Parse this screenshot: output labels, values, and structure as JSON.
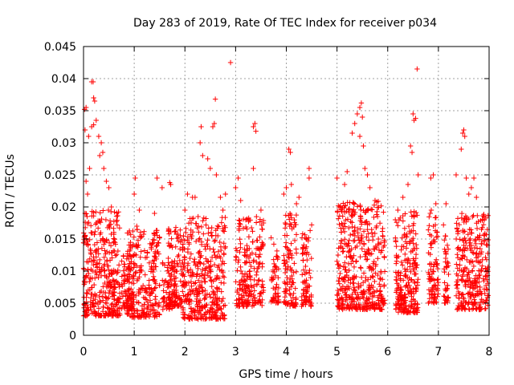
{
  "chart_data": {
    "type": "scatter",
    "title": "Day 283 of 2019, Rate Of TEC Index for receiver p034",
    "xlabel": "GPS time / hours",
    "ylabel": "ROTI / TECUs",
    "xlim": [
      0,
      8
    ],
    "ylim": [
      0,
      0.045
    ],
    "xticks": [
      0,
      1,
      2,
      3,
      4,
      5,
      6,
      7,
      8
    ],
    "xtick_labels": [
      "0",
      "1",
      "2",
      "3",
      "4",
      "5",
      "6",
      "7",
      "8"
    ],
    "yticks": [
      0,
      0.005,
      0.01,
      0.015,
      0.02,
      0.025,
      0.03,
      0.035,
      0.04,
      0.045
    ],
    "ytick_labels": [
      "0",
      "0.005",
      "0.01",
      "0.015",
      "0.02",
      "0.025",
      "0.03",
      "0.035",
      "0.04",
      "0.045"
    ],
    "grid": true,
    "marker": "+",
    "color": "#ff0000",
    "series": [
      {
        "name": "ROTI",
        "points": [
          [
            0.02,
            0.0352
          ],
          [
            0.05,
            0.0355
          ],
          [
            0.03,
            0.032
          ],
          [
            0.1,
            0.031
          ],
          [
            0.16,
            0.0395
          ],
          [
            0.19,
            0.0395
          ],
          [
            0.2,
            0.037
          ],
          [
            0.22,
            0.0365
          ],
          [
            0.16,
            0.0325
          ],
          [
            0.2,
            0.0328
          ],
          [
            0.25,
            0.0335
          ],
          [
            0.3,
            0.031
          ],
          [
            0.35,
            0.03
          ],
          [
            0.32,
            0.028
          ],
          [
            0.38,
            0.0285
          ],
          [
            0.4,
            0.026
          ],
          [
            0.45,
            0.024
          ],
          [
            0.5,
            0.023
          ],
          [
            0.55,
            0.02
          ],
          [
            0.12,
            0.026
          ],
          [
            0.08,
            0.022
          ],
          [
            0.05,
            0.024
          ],
          [
            0.03,
            0.019
          ],
          [
            0.07,
            0.0185
          ],
          [
            0.25,
            0.0122
          ],
          [
            0.4,
            0.0108
          ],
          [
            0.55,
            0.0096
          ],
          [
            0.65,
            0.0084
          ],
          [
            0.9,
            0.0062
          ],
          [
            0.95,
            0.0091
          ],
          [
            0.85,
            0.0052
          ],
          [
            0.2,
            0.0186
          ],
          [
            0.5,
            0.017
          ],
          [
            0.45,
            0.0058
          ],
          [
            0.15,
            0.0064
          ],
          [
            0.3,
            0.0042
          ],
          [
            1.0,
            0.022
          ],
          [
            1.02,
            0.0245
          ],
          [
            1.1,
            0.0195
          ],
          [
            1.05,
            0.017
          ],
          [
            1.45,
            0.0245
          ],
          [
            1.55,
            0.023
          ],
          [
            1.4,
            0.019
          ],
          [
            1.7,
            0.0238
          ],
          [
            1.72,
            0.0235
          ],
          [
            1.2,
            0.0048
          ],
          [
            1.3,
            0.0062
          ],
          [
            1.5,
            0.0078
          ],
          [
            1.6,
            0.0058
          ],
          [
            1.75,
            0.0052
          ],
          [
            1.1,
            0.0091
          ],
          [
            1.35,
            0.0105
          ],
          [
            2.0,
            0.0195
          ],
          [
            2.05,
            0.022
          ],
          [
            2.15,
            0.0215
          ],
          [
            2.2,
            0.0215
          ],
          [
            2.3,
            0.03
          ],
          [
            2.32,
            0.0325
          ],
          [
            2.35,
            0.028
          ],
          [
            2.45,
            0.0275
          ],
          [
            2.5,
            0.026
          ],
          [
            2.55,
            0.0325
          ],
          [
            2.58,
            0.033
          ],
          [
            2.6,
            0.0368
          ],
          [
            2.62,
            0.025
          ],
          [
            2.7,
            0.0215
          ],
          [
            2.8,
            0.022
          ],
          [
            2.75,
            0.0195
          ],
          [
            2.65,
            0.0155
          ],
          [
            2.9,
            0.0425
          ],
          [
            3.0,
            0.023
          ],
          [
            3.05,
            0.0245
          ],
          [
            3.1,
            0.021
          ],
          [
            3.2,
            0.018
          ],
          [
            3.35,
            0.0325
          ],
          [
            3.38,
            0.033
          ],
          [
            3.4,
            0.0318
          ],
          [
            3.35,
            0.026
          ],
          [
            3.5,
            0.0195
          ],
          [
            3.55,
            0.0175
          ],
          [
            3.25,
            0.0052
          ],
          [
            3.45,
            0.0085
          ],
          [
            3.7,
            0.0152
          ],
          [
            3.75,
            0.0118
          ],
          [
            3.8,
            0.0075
          ],
          [
            3.95,
            0.022
          ],
          [
            4.0,
            0.023
          ],
          [
            4.05,
            0.029
          ],
          [
            4.08,
            0.0285
          ],
          [
            4.1,
            0.0235
          ],
          [
            4.2,
            0.0205
          ],
          [
            4.25,
            0.0215
          ],
          [
            4.45,
            0.026
          ],
          [
            4.45,
            0.0245
          ],
          [
            4.5,
            0.0172
          ],
          [
            4.4,
            0.0098
          ],
          [
            4.35,
            0.0062
          ],
          [
            5.0,
            0.0245
          ],
          [
            5.05,
            0.02
          ],
          [
            5.15,
            0.0235
          ],
          [
            5.2,
            0.0255
          ],
          [
            5.3,
            0.0315
          ],
          [
            5.35,
            0.033
          ],
          [
            5.4,
            0.0345
          ],
          [
            5.45,
            0.0355
          ],
          [
            5.48,
            0.0362
          ],
          [
            5.5,
            0.034
          ],
          [
            5.45,
            0.031
          ],
          [
            5.52,
            0.0295
          ],
          [
            5.55,
            0.026
          ],
          [
            5.6,
            0.025
          ],
          [
            5.65,
            0.023
          ],
          [
            5.75,
            0.021
          ],
          [
            5.8,
            0.0185
          ],
          [
            5.9,
            0.0155
          ],
          [
            5.85,
            0.0068
          ],
          [
            5.7,
            0.0052
          ],
          [
            6.15,
            0.018
          ],
          [
            6.2,
            0.0195
          ],
          [
            6.3,
            0.0215
          ],
          [
            6.45,
            0.0295
          ],
          [
            6.48,
            0.0285
          ],
          [
            6.5,
            0.0345
          ],
          [
            6.52,
            0.0335
          ],
          [
            6.55,
            0.0338
          ],
          [
            6.58,
            0.0415
          ],
          [
            6.6,
            0.025
          ],
          [
            6.4,
            0.0235
          ],
          [
            6.35,
            0.0058
          ],
          [
            6.25,
            0.0072
          ],
          [
            6.85,
            0.0245
          ],
          [
            6.9,
            0.025
          ],
          [
            6.95,
            0.0205
          ],
          [
            7.1,
            0.0172
          ],
          [
            7.15,
            0.0205
          ],
          [
            7.2,
            0.0095
          ],
          [
            7.35,
            0.025
          ],
          [
            7.45,
            0.029
          ],
          [
            7.48,
            0.0315
          ],
          [
            7.5,
            0.032
          ],
          [
            7.52,
            0.031
          ],
          [
            7.55,
            0.0245
          ],
          [
            7.6,
            0.022
          ],
          [
            7.65,
            0.023
          ],
          [
            7.7,
            0.0245
          ],
          [
            7.75,
            0.0215
          ],
          [
            7.85,
            0.0165
          ],
          [
            7.9,
            0.0185
          ],
          [
            7.95,
            0.0072
          ],
          [
            7.98,
            0.0062
          ]
        ]
      }
    ],
    "bands": [
      {
        "x_start": 0.0,
        "x_end": 0.72,
        "y_min": 0.003,
        "y_max": 0.0195,
        "count": 360
      },
      {
        "x_start": 0.75,
        "x_end": 1.0,
        "y_min": 0.004,
        "y_max": 0.0125,
        "count": 70
      },
      {
        "x_start": 0.85,
        "x_end": 1.5,
        "y_min": 0.0028,
        "y_max": 0.0165,
        "count": 260
      },
      {
        "x_start": 1.55,
        "x_end": 1.85,
        "y_min": 0.004,
        "y_max": 0.0115,
        "count": 60
      },
      {
        "x_start": 1.65,
        "x_end": 2.0,
        "y_min": 0.0045,
        "y_max": 0.017,
        "count": 120
      },
      {
        "x_start": 1.95,
        "x_end": 2.8,
        "y_min": 0.0025,
        "y_max": 0.0185,
        "count": 380
      },
      {
        "x_start": 3.0,
        "x_end": 3.55,
        "y_min": 0.0045,
        "y_max": 0.0185,
        "count": 210
      },
      {
        "x_start": 3.7,
        "x_end": 3.85,
        "y_min": 0.005,
        "y_max": 0.015,
        "count": 50
      },
      {
        "x_start": 3.95,
        "x_end": 4.2,
        "y_min": 0.0045,
        "y_max": 0.0195,
        "count": 110
      },
      {
        "x_start": 4.3,
        "x_end": 4.5,
        "y_min": 0.0045,
        "y_max": 0.0165,
        "count": 80
      },
      {
        "x_start": 5.0,
        "x_end": 5.95,
        "y_min": 0.004,
        "y_max": 0.021,
        "count": 450
      },
      {
        "x_start": 6.15,
        "x_end": 6.6,
        "y_min": 0.0035,
        "y_max": 0.0195,
        "count": 240
      },
      {
        "x_start": 6.8,
        "x_end": 7.0,
        "y_min": 0.005,
        "y_max": 0.0195,
        "count": 90
      },
      {
        "x_start": 7.1,
        "x_end": 7.2,
        "y_min": 0.005,
        "y_max": 0.0165,
        "count": 40
      },
      {
        "x_start": 7.35,
        "x_end": 7.98,
        "y_min": 0.004,
        "y_max": 0.019,
        "count": 300
      }
    ]
  }
}
